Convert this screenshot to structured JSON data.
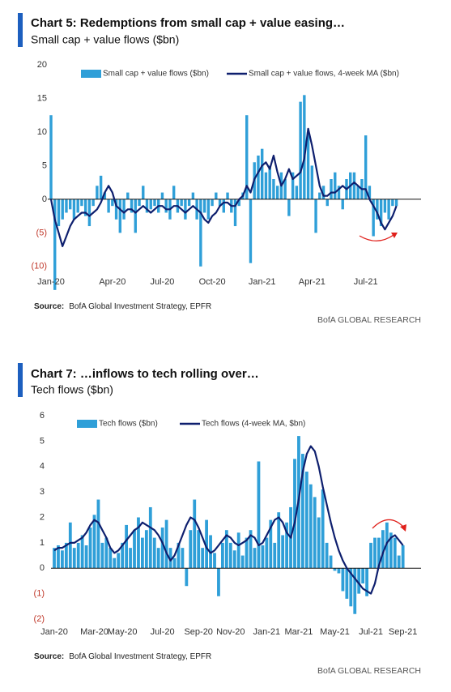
{
  "chart_data": [
    {
      "type": "bar",
      "title": "Chart 5: Redemptions from small cap + value easing…",
      "subtitle": "Small cap + value flows ($bn)",
      "categories": [
        "Jan-20",
        null,
        null,
        null,
        null,
        null,
        null,
        null,
        null,
        null,
        null,
        null,
        null,
        null,
        null,
        null,
        "Apr-20",
        null,
        null,
        null,
        null,
        null,
        null,
        null,
        null,
        null,
        null,
        null,
        null,
        "Jul-20",
        null,
        null,
        null,
        null,
        null,
        null,
        null,
        null,
        null,
        null,
        null,
        null,
        "Oct-20",
        null,
        null,
        null,
        null,
        null,
        null,
        null,
        null,
        null,
        null,
        null,
        null,
        "Jan-21",
        null,
        null,
        null,
        null,
        null,
        null,
        null,
        null,
        null,
        null,
        null,
        null,
        "Apr-21",
        null,
        null,
        null,
        null,
        null,
        null,
        null,
        null,
        null,
        null,
        null,
        null,
        null,
        "Jul-21",
        null,
        null,
        null,
        null,
        null,
        null,
        null,
        null
      ],
      "series": [
        {
          "name": "Small cap + value flows ($bn)",
          "type": "bar",
          "color": "#2f9fd8",
          "values": [
            12.5,
            -13.5,
            -4,
            -3,
            -2,
            -1.5,
            -3,
            -2,
            -1,
            -2.5,
            -4,
            -1,
            2,
            3.5,
            1,
            -2,
            -1,
            -3,
            -5,
            -3,
            1,
            -2,
            -5,
            -1,
            2,
            -2,
            -1.5,
            -1,
            -2,
            1,
            -2,
            -3,
            2,
            -2,
            -1,
            -3,
            -1,
            1,
            -3,
            -10,
            -2,
            -3,
            -1,
            1,
            -1,
            -2,
            1,
            -2,
            -4,
            -1,
            1,
            12.5,
            -9.5,
            5.5,
            6.5,
            7.5,
            4,
            5,
            3,
            2,
            4,
            3,
            -2.5,
            4,
            2,
            14.5,
            15.5,
            10,
            5,
            -5,
            1,
            2,
            -1,
            3,
            4,
            2,
            -1.5,
            3,
            4,
            4,
            2,
            3,
            9.5,
            2,
            -5.5,
            -3,
            -4,
            -2,
            -3,
            -1,
            -1
          ]
        },
        {
          "name": "Small cap + value flows, 4-week MA ($bn)",
          "type": "line",
          "color": "#0e1f6e",
          "values": [
            0,
            -3,
            -5,
            -7,
            -5.5,
            -4,
            -3,
            -2.5,
            -2,
            -2,
            -2.5,
            -2,
            -1.5,
            -0.5,
            1,
            2,
            1,
            -1,
            -1.5,
            -2,
            -1.5,
            -1.5,
            -2,
            -1.5,
            -1,
            -1.5,
            -2,
            -1.5,
            -1,
            -1,
            -1.5,
            -1.5,
            -1,
            -1,
            -1.5,
            -2,
            -1.5,
            -1,
            -1.5,
            -2,
            -3,
            -3.5,
            -2.5,
            -2,
            -1,
            -0.5,
            -0.5,
            -1,
            -1,
            0,
            0.5,
            2,
            1,
            3,
            4,
            5,
            5.5,
            4.5,
            6.5,
            4,
            2,
            3,
            4.5,
            3,
            3.5,
            4,
            6,
            10.5,
            8,
            5,
            2,
            0.5,
            0.5,
            1,
            1,
            1.5,
            2,
            1.5,
            2,
            2.5,
            2,
            1.5,
            1.5,
            0,
            -1,
            -2,
            -3.5,
            -4.5,
            -3.5,
            -2.5,
            -1
          ]
        }
      ],
      "ylim": [
        -14,
        20
      ],
      "yticks": [
        20,
        15,
        10,
        5,
        0,
        {
          "value": -5,
          "label": "(5)"
        },
        {
          "value": -10,
          "label": "(10)"
        }
      ],
      "negative_tick_color": "#c0392b",
      "grid": false,
      "source_label": "Source:",
      "source": "BofA Global Investment Strategy, EPFR",
      "brand": "BofA GLOBAL RESEARCH"
    },
    {
      "type": "bar",
      "title": "Chart 7: …inflows to tech rolling over…",
      "subtitle": "Tech flows ($bn)",
      "categories": [
        "Jan-20",
        null,
        null,
        null,
        null,
        null,
        null,
        null,
        null,
        null,
        "Mar-20",
        null,
        null,
        null,
        null,
        null,
        null,
        "May-20",
        null,
        null,
        null,
        null,
        null,
        null,
        null,
        null,
        null,
        "Jul-20",
        null,
        null,
        null,
        null,
        null,
        null,
        null,
        null,
        "Sep-20",
        null,
        null,
        null,
        null,
        null,
        null,
        null,
        "Nov-20",
        null,
        null,
        null,
        null,
        null,
        null,
        null,
        null,
        "Jan-21",
        null,
        null,
        null,
        null,
        null,
        null,
        null,
        "Mar-21",
        null,
        null,
        null,
        null,
        null,
        null,
        null,
        null,
        "May-21",
        null,
        null,
        null,
        null,
        null,
        null,
        null,
        null,
        "Jul-21",
        null,
        null,
        null,
        null,
        null,
        null,
        null,
        "Sep-21"
      ],
      "series": [
        {
          "name": "Tech flows ($bn)",
          "type": "bar",
          "color": "#2f9fd8",
          "values": [
            0.8,
            0.9,
            0.7,
            1.0,
            1.8,
            0.8,
            1.0,
            1.3,
            0.9,
            1.6,
            2.1,
            2.7,
            1.0,
            1.2,
            0.8,
            0.4,
            0.6,
            1.0,
            1.7,
            0.8,
            1.5,
            2.0,
            1.2,
            1.5,
            2.4,
            1.2,
            0.8,
            1.6,
            1.9,
            0.8,
            0.4,
            1.0,
            0.8,
            -0.7,
            1.5,
            2.7,
            1.5,
            0.8,
            1.9,
            1.3,
            0.6,
            -1.1,
            1.0,
            1.5,
            1.0,
            0.7,
            1.4,
            0.5,
            1.2,
            1.5,
            0.8,
            4.2,
            0.9,
            1.2,
            1.9,
            1.0,
            2.2,
            1.3,
            1.8,
            2.4,
            4.3,
            5.2,
            4.5,
            3.8,
            3.3,
            2.8,
            2.0,
            3.1,
            1.0,
            0.5,
            -0.1,
            -0.2,
            -0.9,
            -1.2,
            -1.5,
            -1.8,
            -1.0,
            -0.6,
            -1.1,
            1.0,
            1.2,
            1.2,
            1.5,
            1.8,
            1.4,
            1.2,
            0.5,
            0.9
          ]
        },
        {
          "name": "Tech flows (4-week MA, $bn)",
          "type": "line",
          "color": "#0e1f6e",
          "values": [
            0.7,
            0.8,
            0.8,
            0.9,
            1.0,
            1.0,
            1.1,
            1.2,
            1.4,
            1.7,
            1.9,
            1.8,
            1.5,
            1.2,
            0.8,
            0.6,
            0.7,
            0.9,
            1.1,
            1.3,
            1.5,
            1.6,
            1.8,
            1.7,
            1.6,
            1.5,
            1.3,
            1.0,
            0.6,
            0.3,
            0.5,
            0.9,
            1.3,
            1.7,
            2.0,
            1.9,
            1.6,
            1.2,
            0.8,
            0.6,
            0.7,
            0.9,
            1.1,
            1.3,
            1.2,
            1.0,
            0.9,
            1.0,
            1.1,
            1.3,
            1.2,
            0.9,
            1.0,
            1.3,
            1.6,
            1.9,
            2.0,
            1.8,
            1.4,
            1.2,
            1.8,
            2.7,
            3.8,
            4.5,
            4.8,
            4.6,
            4.0,
            3.2,
            2.5,
            1.8,
            1.2,
            0.7,
            0.3,
            0.0,
            -0.2,
            -0.4,
            -0.6,
            -0.8,
            -0.9,
            -1.0,
            -0.6,
            0.1,
            0.6,
            1.0,
            1.2,
            1.3,
            1.1,
            0.9
          ]
        }
      ],
      "ylim": [
        -2,
        6
      ],
      "yticks": [
        6,
        5,
        4,
        3,
        2,
        1,
        0,
        {
          "value": -1,
          "label": "(1)"
        },
        {
          "value": -2,
          "label": "(2)"
        }
      ],
      "negative_tick_color": "#c0392b",
      "grid": false,
      "source_label": "Source:",
      "source": "BofA Global Investment Strategy, EPFR",
      "brand": "BofA GLOBAL RESEARCH"
    }
  ]
}
